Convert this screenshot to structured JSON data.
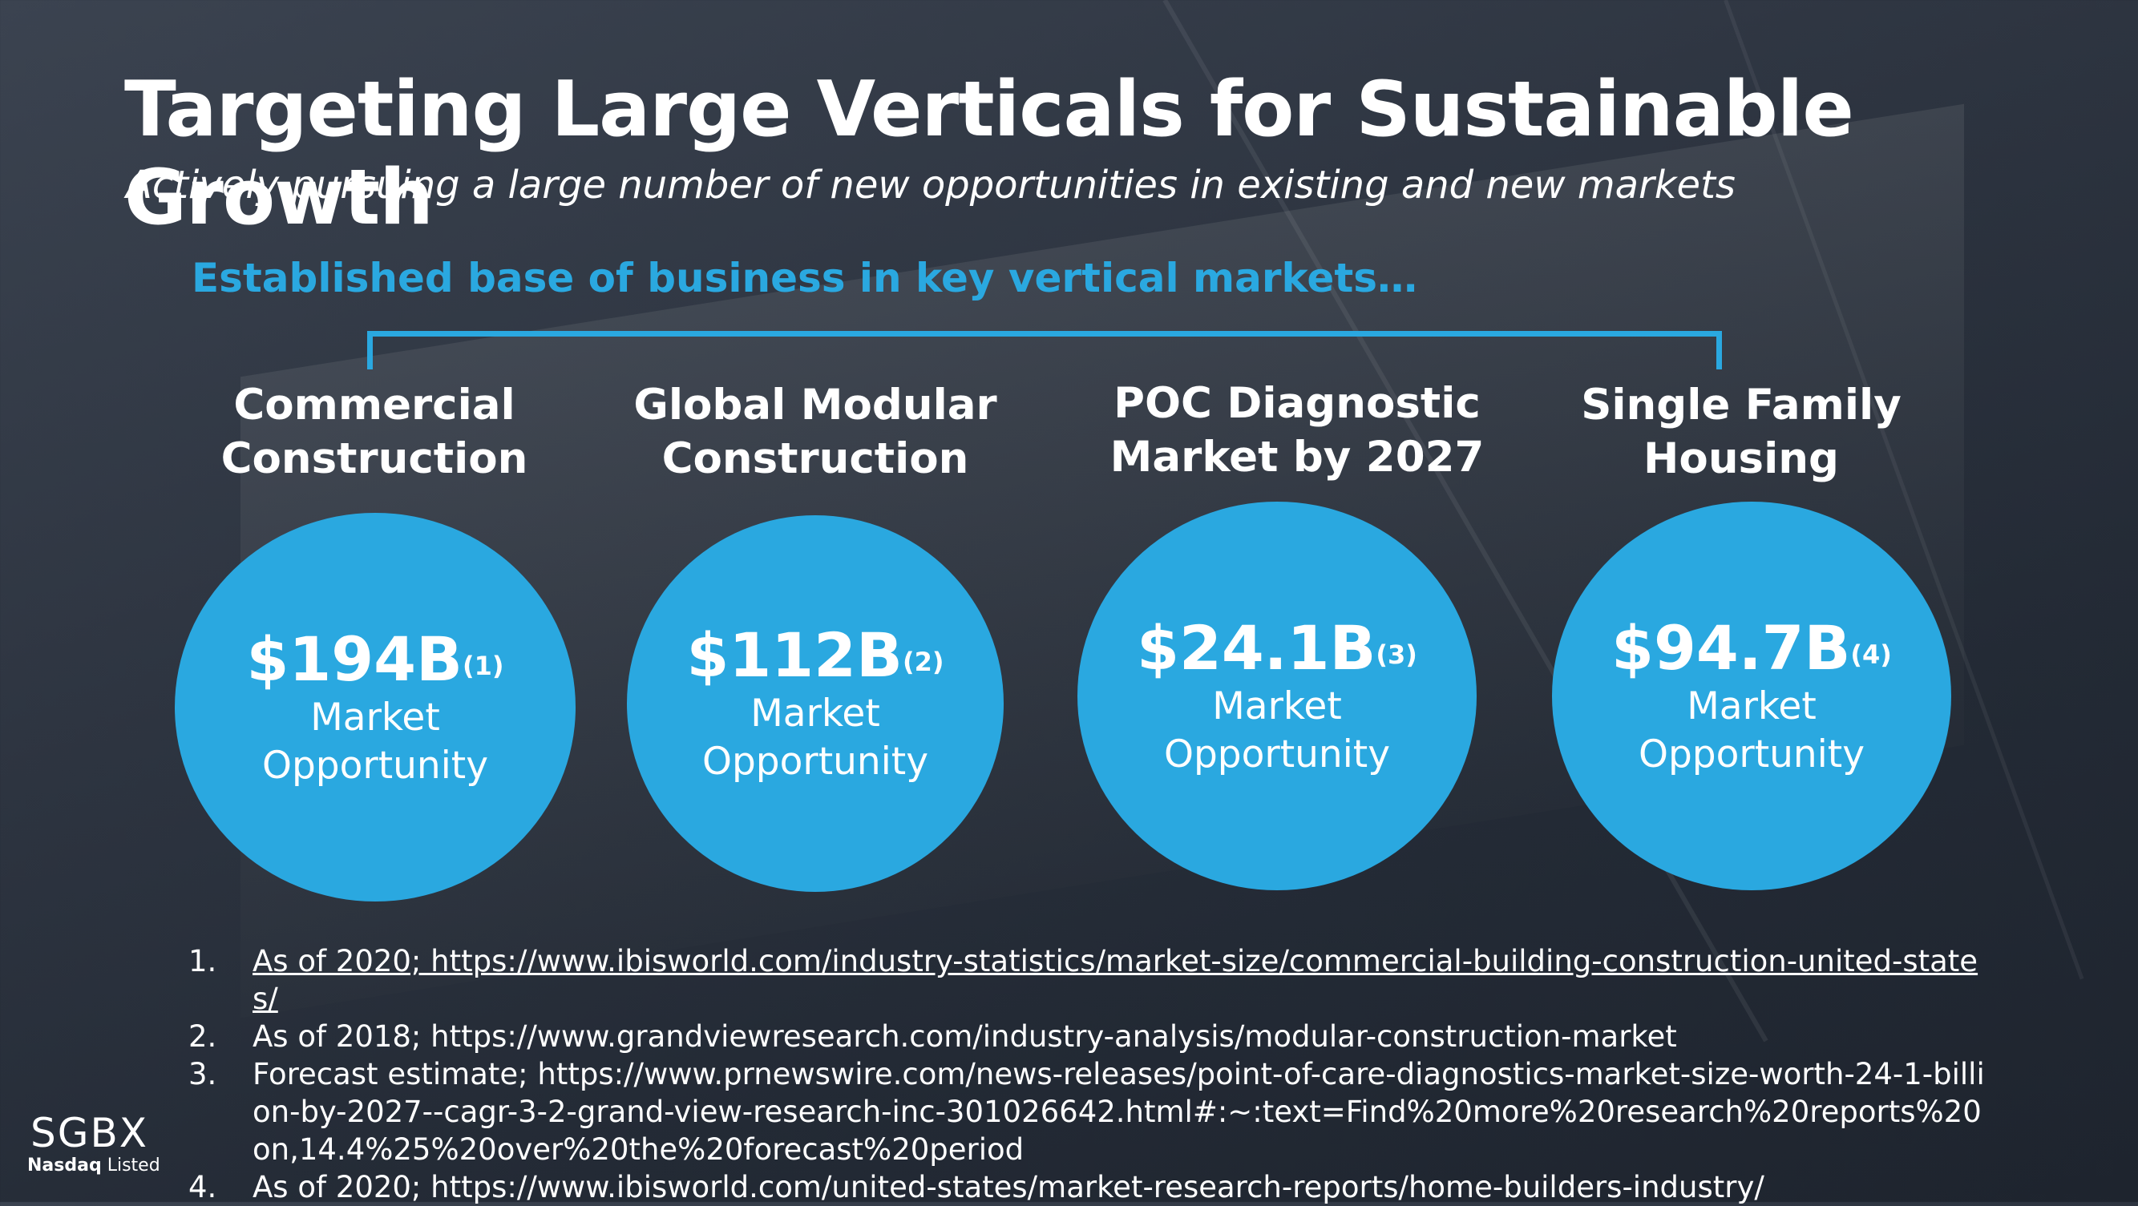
{
  "slide": {
    "title": "Targeting Large Verticals for Sustainable Growth",
    "subtitle": "Actively pursuing a large number of new opportunities in existing and new markets",
    "tagline": "Established base of business in key vertical markets…"
  },
  "verticals": [
    {
      "heading_line1": "Commercial",
      "heading_line2": "Construction",
      "amount": "$194B",
      "note_ref": "(1)",
      "label_line1": "Market",
      "label_line2": "Opportunity"
    },
    {
      "heading_line1": "Global Modular",
      "heading_line2": "Construction",
      "amount": "$112B",
      "note_ref": "(2)",
      "label_line1": "Market",
      "label_line2": "Opportunity"
    },
    {
      "heading_line1": "POC Diagnostic",
      "heading_line2": "Market by 2027",
      "amount": "$24.1B",
      "note_ref": "(3)",
      "label_line1": "Market",
      "label_line2": "Opportunity"
    },
    {
      "heading_line1": "Single Family",
      "heading_line2": "Housing",
      "amount": "$94.7B",
      "note_ref": "(4)",
      "label_line1": "Market",
      "label_line2": "Opportunity"
    }
  ],
  "footnotes": [
    {
      "num": "1.",
      "text": "As of 2020; https://www.ibisworld.com/industry-statistics/market-size/commercial-building-construction-united-states/"
    },
    {
      "num": "2.",
      "text": "As of 2018; https://www.grandviewresearch.com/industry-analysis/modular-construction-market"
    },
    {
      "num": "3.",
      "text": "Forecast estimate; https://www.prnewswire.com/news-releases/point-of-care-diagnostics-market-size-worth-24-1-billion-by-2027--cagr-3-2-grand-view-research-inc-301026642.html#:~:text=Find%20more%20research%20reports%20on,14.4%25%20over%20the%20forecast%20period"
    },
    {
      "num": "4.",
      "text": "As of 2020; https://www.ibisworld.com/united-states/market-research-reports/home-builders-industry/"
    }
  ],
  "logo": {
    "name": "SGBX",
    "sub_bold": "Nasdaq",
    "sub_rest": " Listed"
  },
  "colors": {
    "accent": "#2aa8e0",
    "background": "#2d3440"
  }
}
